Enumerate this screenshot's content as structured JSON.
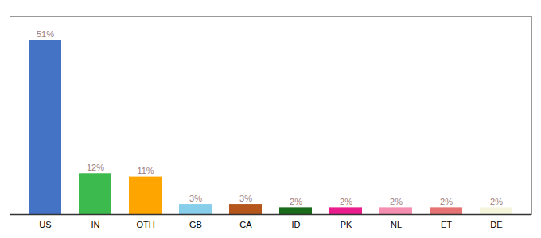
{
  "chart_data": {
    "type": "bar",
    "categories": [
      "US",
      "IN",
      "OTH",
      "GB",
      "CA",
      "ID",
      "PK",
      "NL",
      "ET",
      "DE"
    ],
    "values": [
      51,
      12,
      11,
      3,
      3,
      2,
      2,
      2,
      2,
      2
    ],
    "value_labels": [
      "51%",
      "12%",
      "11%",
      "3%",
      "3%",
      "2%",
      "2%",
      "2%",
      "2%",
      "2%"
    ],
    "colors": [
      "#4472c4",
      "#3dba4e",
      "#ffa500",
      "#87ceeb",
      "#b5561c",
      "#1a6b1a",
      "#e91e8c",
      "#f48fb1",
      "#e57373",
      "#f5f5dc"
    ],
    "ylim": [
      0,
      58
    ],
    "data_labels": true,
    "tick_labels": "x",
    "grid": false
  }
}
